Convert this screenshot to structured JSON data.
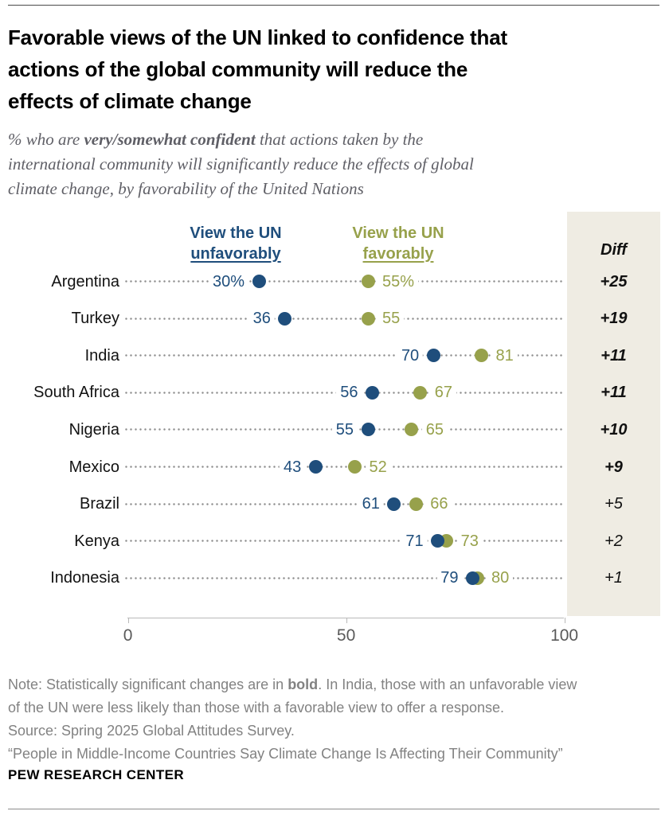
{
  "header": {
    "title_lines": [
      "Favorable views of the UN linked to confidence that",
      "actions of the global community will reduce the",
      "effects of climate change"
    ],
    "subtitle": {
      "line1_prefix": "% who are ",
      "line1_bold": "very/somewhat confident",
      "line1_suffix": " that actions taken by the",
      "line2": "international community will significantly reduce the effects of global",
      "line3": "climate change, by favorability of the United Nations"
    }
  },
  "chart_data": {
    "type": "scatter",
    "subtype": "dot-plot-dumbbell",
    "title": "Favorable views of the UN linked to confidence that actions of the global community will reduce the effects of climate change",
    "categories": [
      "Argentina",
      "Turkey",
      "India",
      "South Africa",
      "Nigeria",
      "Mexico",
      "Brazil",
      "Kenya",
      "Indonesia"
    ],
    "series": [
      {
        "name": "View the UN unfavorably",
        "color": "#1f4e7c",
        "values": [
          30,
          36,
          70,
          56,
          55,
          43,
          61,
          71,
          79
        ],
        "value_labels": [
          "30%",
          "36",
          "70",
          "56",
          "55",
          "43",
          "61",
          "71",
          "79"
        ]
      },
      {
        "name": "View the UN favorably",
        "color": "#97a14b",
        "values": [
          55,
          55,
          81,
          67,
          65,
          52,
          66,
          73,
          80
        ],
        "value_labels": [
          "55%",
          "55",
          "81",
          "67",
          "65",
          "52",
          "66",
          "73",
          "80"
        ]
      }
    ],
    "diff": {
      "header": "Diff",
      "values": [
        "+25",
        "+19",
        "+11",
        "+11",
        "+10",
        "+9",
        "+5",
        "+2",
        "+1"
      ],
      "bold": [
        true,
        true,
        true,
        true,
        true,
        true,
        false,
        false,
        false
      ]
    },
    "legend": [
      {
        "line1": "View the UN",
        "line2": "unfavorably",
        "color": "#1f4e7c"
      },
      {
        "line1": "View the UN",
        "line2": "favorably",
        "color": "#97a14b"
      }
    ],
    "xlim": [
      0,
      100
    ],
    "x_tick_values": [
      0,
      50,
      100
    ],
    "x_tick_labels": [
      "0",
      "50",
      "100"
    ],
    "grid": "dotted row leader lines",
    "legend_position": "top, above dot columns",
    "panel_color": "#efece3"
  },
  "footer": {
    "note": {
      "line1_prefix": "Note: Statistically significant changes are in ",
      "line1_bold": "bold",
      "line1_suffix": ". In India, those with an unfavorable view",
      "line2": "of the UN were less likely than those with a favorable view to offer a response.",
      "source": "Source: Spring 2025 Global Attitudes Survey.",
      "quote": "“People in Middle-Income Countries Say Climate Change Is Affecting Their Community”"
    },
    "brand": "PEW RESEARCH CENTER"
  }
}
